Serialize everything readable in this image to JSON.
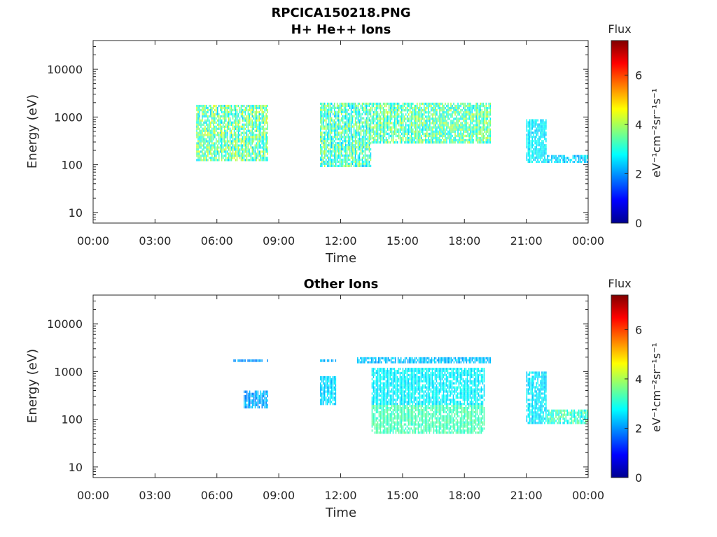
{
  "figure": {
    "title": "RPCICA150218.PNG"
  },
  "panels": [
    {
      "title": "H+ He++ Ions",
      "ylabel": "Energy (eV)",
      "xlabel": "Time",
      "cb_title": "Flux",
      "cb_units": "eV⁻¹cm⁻²sr⁻¹s⁻¹"
    },
    {
      "title": "Other Ions",
      "ylabel": "Energy (eV)",
      "xlabel": "Time",
      "cb_title": "Flux",
      "cb_units": "eV⁻¹cm⁻²sr⁻¹s⁻¹"
    }
  ],
  "chart_data": [
    {
      "type": "heatmap",
      "title": "H+ He++ Ions",
      "xlabel": "Time",
      "ylabel": "Energy (eV)",
      "x_tick_labels": [
        "00:00",
        "03:00",
        "06:00",
        "09:00",
        "12:00",
        "15:00",
        "18:00",
        "21:00",
        "00:00"
      ],
      "x_range_hours": [
        0,
        24
      ],
      "y_scale": "log",
      "y_ticks": [
        10,
        100,
        1000,
        10000
      ],
      "y_tick_labels": [
        "10",
        "100",
        "1000",
        "10000"
      ],
      "ylim": [
        6,
        40000
      ],
      "colorbar": {
        "title": "Flux",
        "units": "eV⁻¹cm⁻²sr⁻¹s⁻¹",
        "range": [
          0,
          7.4
        ],
        "ticks": [
          0,
          2,
          4,
          6
        ],
        "tick_labels": [
          "0",
          "2",
          "4",
          "6"
        ],
        "colormap": "jet"
      },
      "grid": false,
      "regions": [
        {
          "t": [
            5.0,
            8.5
          ],
          "e": [
            120,
            1800
          ],
          "flux": [
            2.4,
            4.5
          ]
        },
        {
          "t": [
            11.0,
            13.5
          ],
          "e": [
            90,
            2000
          ],
          "flux": [
            2.3,
            4.2
          ]
        },
        {
          "t": [
            13.5,
            19.3
          ],
          "e": [
            280,
            2000
          ],
          "flux": [
            2.5,
            4.3
          ]
        },
        {
          "t": [
            21.0,
            22.0
          ],
          "e": [
            110,
            900
          ],
          "flux": [
            2.3,
            3.0
          ]
        },
        {
          "t": [
            22.0,
            24.0
          ],
          "e": [
            110,
            160
          ],
          "flux": [
            2.0,
            2.8
          ]
        }
      ]
    },
    {
      "type": "heatmap",
      "title": "Other Ions",
      "xlabel": "Time",
      "ylabel": "Energy (eV)",
      "x_tick_labels": [
        "00:00",
        "03:00",
        "06:00",
        "09:00",
        "12:00",
        "15:00",
        "18:00",
        "21:00",
        "00:00"
      ],
      "x_range_hours": [
        0,
        24
      ],
      "y_scale": "log",
      "y_ticks": [
        10,
        100,
        1000,
        10000
      ],
      "y_tick_labels": [
        "10",
        "100",
        "1000",
        "10000"
      ],
      "ylim": [
        6,
        40000
      ],
      "colorbar": {
        "title": "Flux",
        "units": "eV⁻¹cm⁻²sr⁻¹s⁻¹",
        "range": [
          0,
          7.4
        ],
        "ticks": [
          0,
          2,
          4,
          6
        ],
        "tick_labels": [
          "0",
          "2",
          "4",
          "6"
        ],
        "colormap": "jet"
      },
      "grid": false,
      "regions": [
        {
          "t": [
            6.8,
            8.5
          ],
          "e": [
            1600,
            1800
          ],
          "flux": [
            1.8,
            2.3
          ]
        },
        {
          "t": [
            7.3,
            8.5
          ],
          "e": [
            170,
            400
          ],
          "flux": [
            1.8,
            2.5
          ]
        },
        {
          "t": [
            11.0,
            11.8
          ],
          "e": [
            200,
            800
          ],
          "flux": [
            2.2,
            2.8
          ]
        },
        {
          "t": [
            11.0,
            11.8
          ],
          "e": [
            1600,
            1800
          ],
          "flux": [
            2.0,
            2.5
          ]
        },
        {
          "t": [
            12.8,
            19.3
          ],
          "e": [
            1500,
            2000
          ],
          "flux": [
            2.0,
            2.6
          ]
        },
        {
          "t": [
            13.5,
            19.0
          ],
          "e": [
            200,
            1200
          ],
          "flux": [
            2.4,
            3.0
          ]
        },
        {
          "t": [
            13.5,
            19.0
          ],
          "e": [
            50,
            200
          ],
          "flux": [
            3.0,
            3.6
          ]
        },
        {
          "t": [
            21.0,
            22.0
          ],
          "e": [
            80,
            1000
          ],
          "flux": [
            2.2,
            3.0
          ]
        },
        {
          "t": [
            22.0,
            24.0
          ],
          "e": [
            80,
            160
          ],
          "flux": [
            2.5,
            3.8
          ]
        }
      ]
    }
  ]
}
